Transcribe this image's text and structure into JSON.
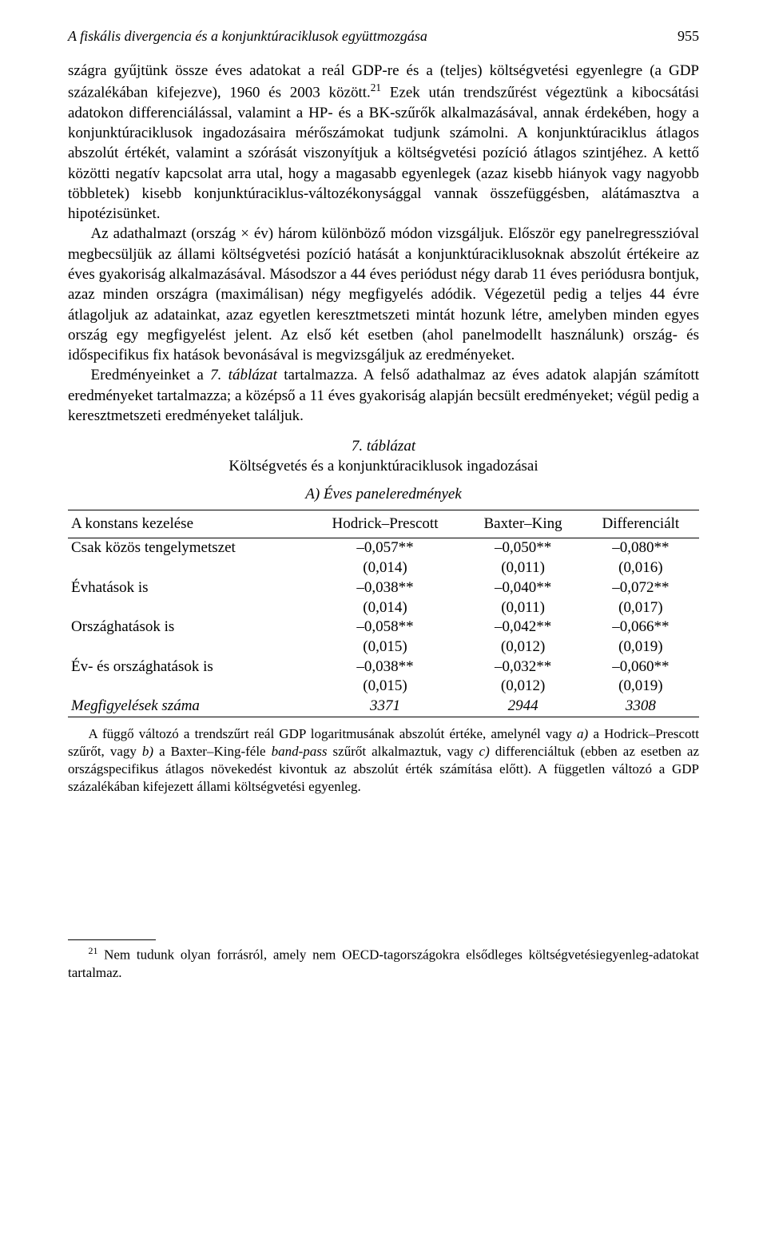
{
  "running_head": {
    "title": "A fiskális divergencia és a konjunktúraciklusok együttmozgása",
    "page_number": "955"
  },
  "paragraphs": {
    "p1a": "szágra gyűjtünk össze éves adatokat a reál GDP-re és a (teljes) költségvetési egyenlegre (a GDP százalékában kifejezve), 1960 és 2003 között.",
    "p1_sup": "21",
    "p1b": " Ezek után trendszűrést végeztünk a kibocsátási adatokon differenciálással, valamint a HP- és a BK-szűrők alkalmazásával, annak érdekében, hogy a konjunktúraciklusok ingadozásaira mérőszámokat tudjunk számolni. A konjunktúraciklus átlagos abszolút értékét, valamint a szórását viszonyítjuk a költségvetési pozíció átlagos szintjéhez. A kettő közötti negatív kapcsolat arra utal, hogy a magasabb egyenlegek (azaz kisebb hiányok vagy nagyobb többletek) kisebb konjunktúraciklus-változékonysággal vannak összefüggésben, alátámasztva a hipotézisünket.",
    "p2": "Az adathalmazt (ország × év) három különböző módon vizsgáljuk. Először egy panelregresszióval megbecsüljük az állami költségvetési pozíció hatását a konjunktúraciklusoknak abszolút értékeire az éves gyakoriság alkalmazásával. Másodszor a 44 éves periódust négy darab 11 éves periódusra bontjuk, azaz minden országra (maximálisan) négy megfigyelés adódik. Végezetül pedig a teljes 44 évre átlagoljuk az adatainkat, azaz egyetlen keresztmetszeti mintát hozunk létre, amelyben minden egyes ország egy megfigyelést jelent. Az első két esetben (ahol panelmodellt használunk) ország- és időspecifikus fix hatások bevonásával is megvizsgáljuk az eredményeket.",
    "p3_a": "Eredményeinket a ",
    "p3_ref": "7. táblázat",
    "p3_b": " tartalmazza. A felső adathalmaz az éves adatok alapján számított eredményeket tartalmazza; a középső a 11 éves gyakoriság alapján becsült eredményeket; végül pedig a keresztmetszeti eredményeket találjuk."
  },
  "table": {
    "number": "7. táblázat",
    "title": "Költségvetés és a konjunktúraciklusok ingadozásai",
    "panel_title": "A) Éves paneleredmények",
    "columns": [
      "A konstans kezelése",
      "Hodrick–Prescott",
      "Baxter–King",
      "Differenciált"
    ],
    "rows": [
      {
        "label": "Csak közös tengelymetszet",
        "italic": false,
        "cells": [
          {
            "coef": "–0,057**",
            "se": "(0,014)"
          },
          {
            "coef": "–0,050**",
            "se": "(0,011)"
          },
          {
            "coef": "–0,080**",
            "se": "(0,016)"
          }
        ]
      },
      {
        "label": "Évhatások is",
        "italic": false,
        "cells": [
          {
            "coef": "–0,038**",
            "se": "(0,014)"
          },
          {
            "coef": "–0,040**",
            "se": "(0,011)"
          },
          {
            "coef": "–0,072**",
            "se": "(0,017)"
          }
        ]
      },
      {
        "label": "Országhatások is",
        "italic": false,
        "cells": [
          {
            "coef": "–0,058**",
            "se": "(0,015)"
          },
          {
            "coef": "–0,042**",
            "se": "(0,012)"
          },
          {
            "coef": "–0,066**",
            "se": "(0,019)"
          }
        ]
      },
      {
        "label": "Év- és országhatások is",
        "italic": false,
        "cells": [
          {
            "coef": "–0,038**",
            "se": "(0,015)"
          },
          {
            "coef": "–0,032**",
            "se": "(0,012)"
          },
          {
            "coef": "–0,060**",
            "se": "(0,019)"
          }
        ]
      },
      {
        "label": "Megfigyelések száma",
        "italic": true,
        "cells": [
          {
            "coef": "3371",
            "se": ""
          },
          {
            "coef": "2944",
            "se": ""
          },
          {
            "coef": "3308",
            "se": ""
          }
        ]
      }
    ],
    "note_a": "A függő változó a trendszűrt reál GDP logaritmusának abszolút értéke, amelynél vagy ",
    "note_i1": "a)",
    "note_b": " a Hodrick–Prescott szűrőt, vagy ",
    "note_i2": "b)",
    "note_c": " a Baxter–King-féle ",
    "note_i3": "band-pass",
    "note_d": " szűrőt alkalmaztuk, vagy ",
    "note_i4": "c)",
    "note_e": " differenciáltuk (ebben az esetben az országspecifikus átlagos növekedést kivontuk az abszolút érték számítása előtt). A független változó a GDP százalékában kifejezett állami költségvetési egyenleg."
  },
  "footnote": {
    "num": "21",
    "text": " Nem tudunk olyan forrásról, amely nem OECD-tagországokra elsődleges költségvetésiegyenleg-adatokat tartalmaz."
  }
}
